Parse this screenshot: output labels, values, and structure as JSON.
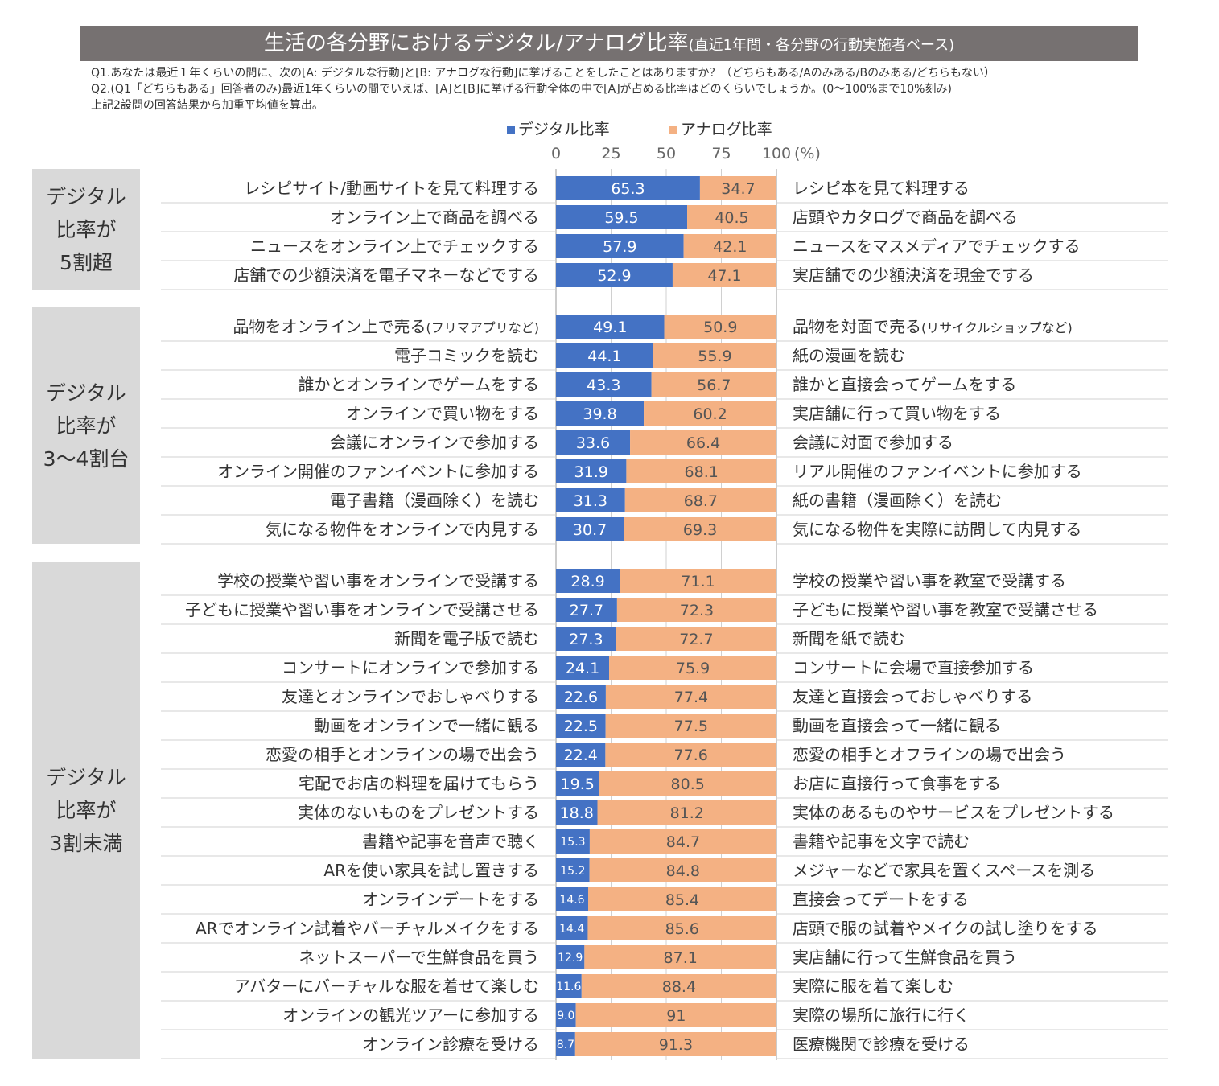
{
  "title": "生活の各分野におけるデジタル/アナログ比率",
  "subtitle": "(直近1年間・各分野の行動実施者ベース)",
  "notes": [
    "Q1.あなたは最近１年くらいの間に、次の[A: デジタルな行動]と[B: アナログな行動]に挙げることをしたことはありますか？（どちらもある/Aのみある/Bのみある/どちらもない）",
    "Q2.(Q1「どちらもある」回答者のみ)最近1年くらいの間でいえば、[A]と[B]に挙げる行動全体の中で[A]が占める比率はどのくらいでしょうか。(0〜100%まで10%刻み)",
    "上記2設問の回答結果から加重平均値を算出。"
  ],
  "colors": {
    "digital": "#4472c4",
    "analog": "#f4b183",
    "group_bg": "#d9d9d9",
    "title_bg": "#767171"
  },
  "chart_data": {
    "type": "bar",
    "orientation": "horizontal",
    "stacked": true,
    "xlim": [
      0,
      100
    ],
    "xticks": [
      "0",
      "25",
      "50",
      "75",
      "100"
    ],
    "unit_label": "(%)",
    "legend": [
      "デジタル比率",
      "アナログ比率"
    ],
    "groups": [
      {
        "label": [
          "デジタル",
          "比率が",
          "5割超"
        ],
        "rows": [
          {
            "a": "レシピサイト/動画サイトを見て料理する",
            "b": "レシピ本を見て料理する",
            "digital": "65.3",
            "analog": "34.7"
          },
          {
            "a": "オンライン上で商品を調べる",
            "b": "店頭やカタログで商品を調べる",
            "digital": "59.5",
            "analog": "40.5"
          },
          {
            "a": "ニュースをオンライン上でチェックする",
            "b": "ニュースをマスメディアでチェックする",
            "digital": "57.9",
            "analog": "42.1"
          },
          {
            "a": "店舗での少額決済を電子マネーなどでする",
            "b": "実店舗での少額決済を現金でする",
            "digital": "52.9",
            "analog": "47.1"
          }
        ]
      },
      {
        "label": [
          "デジタル",
          "比率が",
          "3〜4割台"
        ],
        "rows": [
          {
            "a": "品物をオンライン上で売る",
            "a_note": "(フリマアプリなど)",
            "b": "品物を対面で売る",
            "b_note": "(リサイクルショップなど)",
            "digital": "49.1",
            "analog": "50.9"
          },
          {
            "a": "電子コミックを読む",
            "b": "紙の漫画を読む",
            "digital": "44.1",
            "analog": "55.9"
          },
          {
            "a": "誰かとオンラインでゲームをする",
            "b": "誰かと直接会ってゲームをする",
            "digital": "43.3",
            "analog": "56.7"
          },
          {
            "a": "オンラインで買い物をする",
            "b": "実店舗に行って買い物をする",
            "digital": "39.8",
            "analog": "60.2"
          },
          {
            "a": "会議にオンラインで参加する",
            "b": "会議に対面で参加する",
            "digital": "33.6",
            "analog": "66.4"
          },
          {
            "a": "オンライン開催のファンイベントに参加する",
            "b": "リアル開催のファンイベントに参加する",
            "digital": "31.9",
            "analog": "68.1"
          },
          {
            "a": "電子書籍（漫画除く）を読む",
            "b": "紙の書籍（漫画除く）を読む",
            "digital": "31.3",
            "analog": "68.7"
          },
          {
            "a": "気になる物件をオンラインで内見する",
            "b": "気になる物件を実際に訪問して内見する",
            "digital": "30.7",
            "analog": "69.3"
          }
        ]
      },
      {
        "label": [
          "デジタル",
          "比率が",
          "3割未満"
        ],
        "rows": [
          {
            "a": "学校の授業や習い事をオンラインで受講する",
            "b": "学校の授業や習い事を教室で受講する",
            "digital": "28.9",
            "analog": "71.1"
          },
          {
            "a": "子どもに授業や習い事をオンラインで受講させる",
            "b": "子どもに授業や習い事を教室で受講させる",
            "digital": "27.7",
            "analog": "72.3"
          },
          {
            "a": "新聞を電子版で読む",
            "b": "新聞を紙で読む",
            "digital": "27.3",
            "analog": "72.7"
          },
          {
            "a": "コンサートにオンラインで参加する",
            "b": "コンサートに会場で直接参加する",
            "digital": "24.1",
            "analog": "75.9"
          },
          {
            "a": "友達とオンラインでおしゃべりする",
            "b": "友達と直接会っておしゃべりする",
            "digital": "22.6",
            "analog": "77.4"
          },
          {
            "a": "動画をオンラインで一緒に観る",
            "b": "動画を直接会って一緒に観る",
            "digital": "22.5",
            "analog": "77.5"
          },
          {
            "a": "恋愛の相手とオンラインの場で出会う",
            "b": "恋愛の相手とオフラインの場で出会う",
            "digital": "22.4",
            "analog": "77.6"
          },
          {
            "a": "宅配でお店の料理を届けてもらう",
            "b": "お店に直接行って食事をする",
            "digital": "19.5",
            "analog": "80.5"
          },
          {
            "a": "実体のないものをプレゼントする",
            "b": "実体のあるものやサービスをプレゼントする",
            "digital": "18.8",
            "analog": "81.2"
          },
          {
            "a": "書籍や記事を音声で聴く",
            "b": "書籍や記事を文字で読む",
            "digital": "15.3",
            "analog": "84.7"
          },
          {
            "a": "ARを使い家具を試し置きする",
            "b": "メジャーなどで家具を置くスペースを測る",
            "digital": "15.2",
            "analog": "84.8"
          },
          {
            "a": "オンラインデートをする",
            "b": "直接会ってデートをする",
            "digital": "14.6",
            "analog": "85.4"
          },
          {
            "a": "ARでオンライン試着やバーチャルメイクをする",
            "b": "店頭で服の試着やメイクの試し塗りをする",
            "digital": "14.4",
            "analog": "85.6"
          },
          {
            "a": "ネットスーパーで生鮮食品を買う",
            "b": "実店舗に行って生鮮食品を買う",
            "digital": "12.9",
            "analog": "87.1"
          },
          {
            "a": "アバターにバーチャルな服を着せて楽しむ",
            "b": "実際に服を着て楽しむ",
            "digital": "11.6",
            "analog": "88.4"
          },
          {
            "a": "オンラインの観光ツアーに参加する",
            "b": "実際の場所に旅行に行く",
            "digital": "9.0",
            "analog": "91"
          },
          {
            "a": "オンライン診療を受ける",
            "b": "医療機関で診療を受ける",
            "digital": "8.7",
            "analog": "91.3"
          }
        ]
      }
    ]
  }
}
